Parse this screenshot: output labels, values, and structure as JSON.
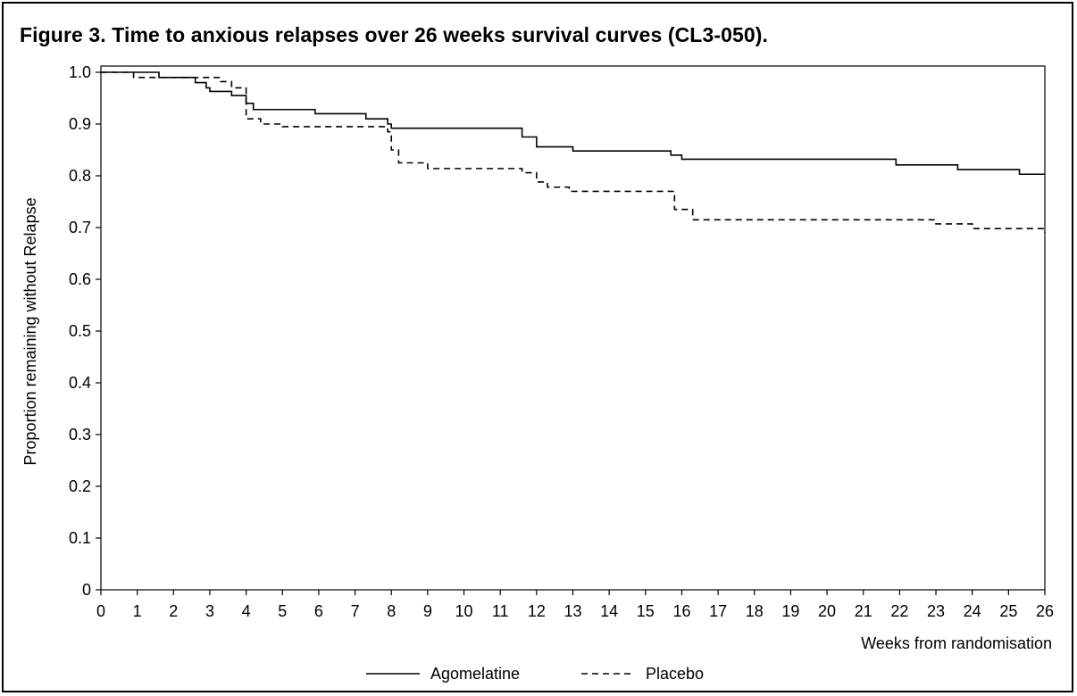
{
  "chart_data": {
    "type": "line",
    "title": "Figure 3. Time to anxious relapses over 26 weeks survival curves (CL3-050).",
    "xlabel": "Weeks from randomisation",
    "ylabel": "Proportion remaining without Relapse",
    "xlim": [
      0,
      26
    ],
    "ylim": [
      0,
      1.0
    ],
    "xticks": [
      "0",
      "1",
      "2",
      "3",
      "4",
      "5",
      "6",
      "7",
      "8",
      "9",
      "10",
      "11",
      "12",
      "13",
      "14",
      "15",
      "16",
      "17",
      "18",
      "19",
      "20",
      "21",
      "22",
      "23",
      "24",
      "25",
      "26"
    ],
    "yticks": [
      "0",
      "0.1",
      "0.2",
      "0.3",
      "0.4",
      "0.5",
      "0.6",
      "0.7",
      "0.8",
      "0.9",
      "1.0"
    ],
    "grid": false,
    "legend_position": "bottom-center",
    "series": [
      {
        "name": "Agomelatine",
        "style": "solid",
        "color": "#000000",
        "steps": [
          [
            0,
            1.0
          ],
          [
            1.6,
            0.99
          ],
          [
            2.6,
            0.98
          ],
          [
            2.9,
            0.97
          ],
          [
            3.0,
            0.963
          ],
          [
            3.6,
            0.955
          ],
          [
            4.0,
            0.94
          ],
          [
            4.2,
            0.928
          ],
          [
            5.9,
            0.92
          ],
          [
            7.3,
            0.91
          ],
          [
            7.9,
            0.9
          ],
          [
            8.0,
            0.892
          ],
          [
            11.6,
            0.875
          ],
          [
            12.0,
            0.856
          ],
          [
            13.0,
            0.848
          ],
          [
            15.7,
            0.84
          ],
          [
            16.0,
            0.832
          ],
          [
            21.9,
            0.821
          ],
          [
            23.6,
            0.812
          ],
          [
            25.3,
            0.803
          ],
          [
            26.0,
            0.803
          ]
        ]
      },
      {
        "name": "Placebo",
        "style": "dashed",
        "color": "#000000",
        "steps": [
          [
            0,
            1.0
          ],
          [
            0.9,
            0.99
          ],
          [
            1.6,
            0.99
          ],
          [
            3.0,
            0.99
          ],
          [
            3.3,
            0.982
          ],
          [
            3.6,
            0.97
          ],
          [
            4.0,
            0.91
          ],
          [
            4.4,
            0.9
          ],
          [
            5.0,
            0.895
          ],
          [
            7.9,
            0.885
          ],
          [
            8.0,
            0.85
          ],
          [
            8.2,
            0.825
          ],
          [
            9.0,
            0.814
          ],
          [
            11.6,
            0.806
          ],
          [
            12.0,
            0.788
          ],
          [
            12.3,
            0.778
          ],
          [
            12.9,
            0.77
          ],
          [
            15.8,
            0.735
          ],
          [
            16.3,
            0.715
          ],
          [
            23.0,
            0.707
          ],
          [
            24.0,
            0.698
          ],
          [
            26.0,
            0.69
          ]
        ]
      }
    ]
  },
  "legend": {
    "items": [
      {
        "label": "Agomelatine"
      },
      {
        "label": "Placebo"
      }
    ]
  }
}
